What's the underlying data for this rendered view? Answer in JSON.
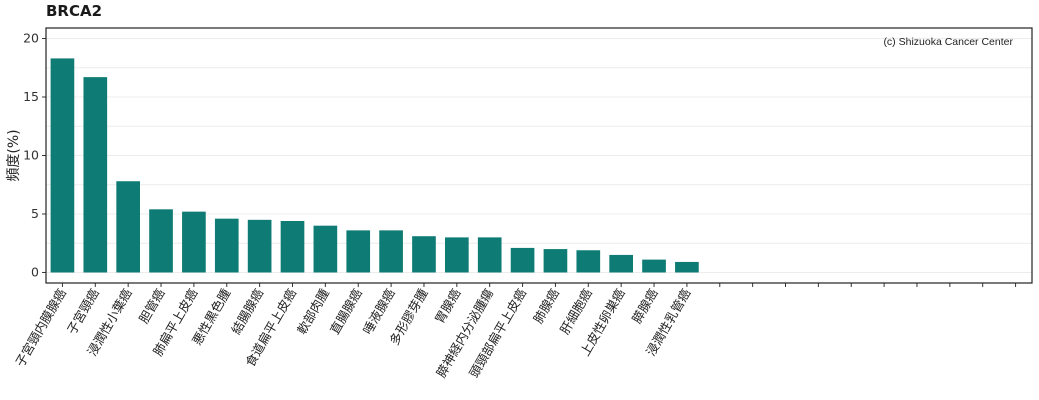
{
  "chart_data": {
    "type": "bar",
    "title": "BRCA2",
    "ylabel": "頻度(%)",
    "xlabel": "",
    "annotation": "(c) Shizuoka Cancer Center",
    "ylim": [
      -0.9,
      20.9
    ],
    "yticks": [
      0,
      5,
      10,
      15,
      20
    ],
    "x_slots": 30,
    "grid": true,
    "bar_color": "#0e7c75",
    "categories": [
      "子宮頸内膜腺癌",
      "子宮頸癌",
      "浸潤性小葉癌",
      "胆管癌",
      "肺扁平上皮癌",
      "悪性黒色腫",
      "結腸腺癌",
      "食道扁平上皮癌",
      "軟部肉腫",
      "直腸腺癌",
      "唾液腺癌",
      "多形膠芽腫",
      "胃腺癌",
      "膵神経内分泌腫瘍",
      "頭頸部扁平上皮癌",
      "肺腺癌",
      "肝細胞癌",
      "上皮性卵巣癌",
      "膵腺癌",
      "浸潤性乳管癌"
    ],
    "values": [
      18.3,
      16.7,
      7.8,
      5.4,
      5.2,
      4.6,
      4.5,
      4.4,
      4.0,
      3.6,
      3.6,
      3.1,
      3.0,
      3.0,
      2.1,
      2.0,
      1.9,
      1.5,
      1.1,
      0.9
    ]
  }
}
